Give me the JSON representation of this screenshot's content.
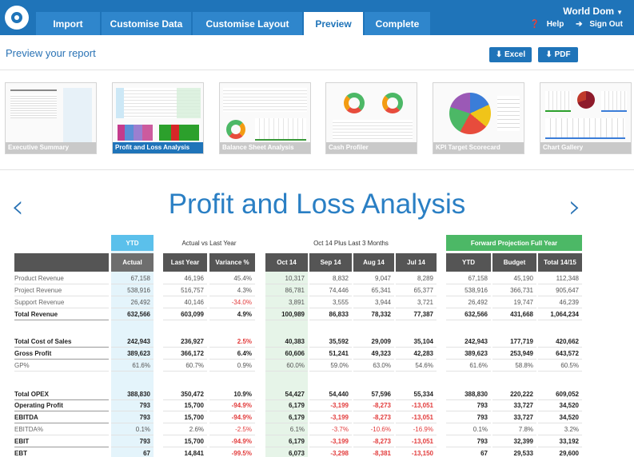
{
  "nav": {
    "tabs": [
      "Import",
      "Customise Data",
      "Customise Layout",
      "Preview",
      "Complete"
    ],
    "active_tab": "Preview",
    "user": {
      "name": "World Dom",
      "help": "Help",
      "sign_out": "Sign Out"
    }
  },
  "preview": {
    "title": "Preview your report",
    "excel_label": "⬇ Excel",
    "pdf_label": "⬇ PDF"
  },
  "thumbnails": [
    "Executive Summary",
    "Profit and Loss Analysis",
    "Balance Sheet Analysis",
    "Cash Profiler",
    "KPI Target Scorecard",
    "Chart Gallery"
  ],
  "selected_thumbnail": "Profit and Loss Analysis",
  "report": {
    "title": "Profit and Loss Analysis",
    "prev_arrow": "‹",
    "next_arrow": "›",
    "groups": {
      "ytd": "YTD",
      "avly": "Actual vs Last Year",
      "oct": "Oct 14 Plus Last 3 Months",
      "fpfy": "Forward Projection Full Year"
    },
    "columns": {
      "actual": "Actual",
      "last_year": "Last Year",
      "variance": "Variance %",
      "oct14": "Oct 14",
      "sep14": "Sep 14",
      "aug14": "Aug 14",
      "jul14": "Jul 14",
      "ytd": "YTD",
      "budget": "Budget",
      "total": "Total 14/15"
    },
    "rows": [
      [
        "Product Revenue",
        "67,158",
        "46,196",
        "45.4%",
        "10,317",
        "8,832",
        "9,047",
        "8,289",
        "67,158",
        "45,190",
        "112,348"
      ],
      [
        "Project Revenue",
        "538,916",
        "516,757",
        "4.3%",
        "86,781",
        "74,446",
        "65,341",
        "65,377",
        "538,916",
        "366,731",
        "905,647"
      ],
      [
        "Support Revenue",
        "26,492",
        "40,146",
        "-34.0%",
        "3,891",
        "3,555",
        "3,944",
        "3,721",
        "26,492",
        "19,747",
        "46,239"
      ],
      [
        "Total Revenue",
        "632,566",
        "603,099",
        "4.9%",
        "100,989",
        "86,833",
        "78,332",
        "77,387",
        "632,566",
        "431,668",
        "1,064,234"
      ],
      [
        "Total Cost of Sales",
        "242,943",
        "236,927",
        "2.5%",
        "40,383",
        "35,592",
        "29,009",
        "35,104",
        "242,943",
        "177,719",
        "420,662"
      ],
      [
        "Gross Profit",
        "389,623",
        "366,172",
        "6.4%",
        "60,606",
        "51,241",
        "49,323",
        "42,283",
        "389,623",
        "253,949",
        "643,572"
      ],
      [
        "GP%",
        "61.6%",
        "60.7%",
        "0.9%",
        "60.0%",
        "59.0%",
        "63.0%",
        "54.6%",
        "61.6%",
        "58.8%",
        "60.5%"
      ],
      [
        "Total OPEX",
        "388,830",
        "350,472",
        "10.9%",
        "54,427",
        "54,440",
        "57,596",
        "55,334",
        "388,830",
        "220,222",
        "609,052"
      ],
      [
        "Operating Profit",
        "793",
        "15,700",
        "-94.9%",
        "6,179",
        "-3,199",
        "-8,273",
        "-13,051",
        "793",
        "33,727",
        "34,520"
      ],
      [
        "EBITDA",
        "793",
        "15,700",
        "-94.9%",
        "6,179",
        "-3,199",
        "-8,273",
        "-13,051",
        "793",
        "33,727",
        "34,520"
      ],
      [
        "EBITDA%",
        "0.1%",
        "2.6%",
        "-2.5%",
        "6.1%",
        "-3.7%",
        "-10.6%",
        "-16.9%",
        "0.1%",
        "7.8%",
        "3.2%"
      ],
      [
        "EBIT",
        "793",
        "15,700",
        "-94.9%",
        "6,179",
        "-3,199",
        "-8,273",
        "-13,051",
        "793",
        "32,399",
        "33,192"
      ],
      [
        "EBT",
        "67",
        "14,841",
        "-99.5%",
        "6,073",
        "-3,298",
        "-8,381",
        "-13,150",
        "67",
        "29,533",
        "29,600"
      ]
    ],
    "row_styles": [
      "n",
      "n",
      "n",
      "b",
      "b",
      "b",
      "n",
      "b",
      "b",
      "b",
      "n",
      "b",
      "b"
    ],
    "red_value": "#e23a3a",
    "ytd_color": "#5bc0eb",
    "fpfy_color": "#4cb866"
  }
}
